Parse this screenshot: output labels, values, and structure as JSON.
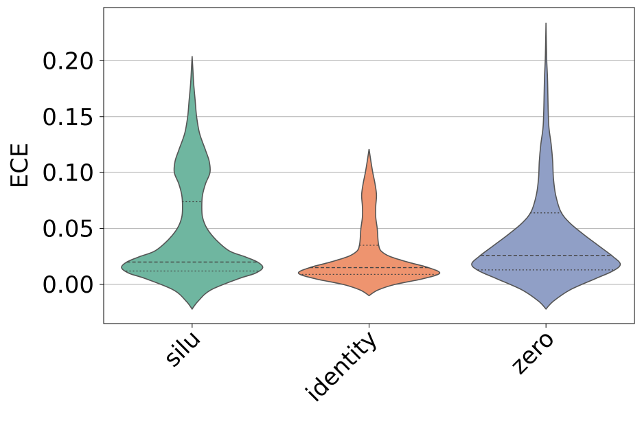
{
  "chart_data": {
    "type": "violin",
    "title": "",
    "xlabel": "",
    "ylabel": "ECE",
    "ylim": [
      -0.035,
      0.2475
    ],
    "yticks": [
      "0.00",
      "0.05",
      "0.10",
      "0.15",
      "0.20"
    ],
    "ytick_values": [
      0.0,
      0.05,
      0.1,
      0.15,
      0.2
    ],
    "grid": "horizontal",
    "categories": [
      "silu",
      "identity",
      "zero"
    ],
    "series": [
      {
        "category": "silu",
        "color": "#6fb6a0",
        "min": -0.022,
        "max": 0.204,
        "q1": 0.012,
        "median": 0.02,
        "q3": 0.074,
        "profile": [
          [
            -0.022,
            0.0
          ],
          [
            -0.015,
            0.08
          ],
          [
            -0.005,
            0.25
          ],
          [
            0.005,
            0.62
          ],
          [
            0.01,
            0.85
          ],
          [
            0.015,
            0.95
          ],
          [
            0.02,
            0.88
          ],
          [
            0.025,
            0.7
          ],
          [
            0.03,
            0.5
          ],
          [
            0.04,
            0.32
          ],
          [
            0.05,
            0.2
          ],
          [
            0.06,
            0.14
          ],
          [
            0.07,
            0.13
          ],
          [
            0.08,
            0.14
          ],
          [
            0.09,
            0.18
          ],
          [
            0.1,
            0.24
          ],
          [
            0.11,
            0.23
          ],
          [
            0.12,
            0.18
          ],
          [
            0.135,
            0.1
          ],
          [
            0.15,
            0.06
          ],
          [
            0.165,
            0.04
          ],
          [
            0.18,
            0.02
          ],
          [
            0.192,
            0.01
          ],
          [
            0.204,
            0.0
          ]
        ]
      },
      {
        "category": "identity",
        "color": "#ee946f",
        "min": -0.01,
        "max": 0.121,
        "q1": 0.009,
        "median": 0.015,
        "q3": 0.035,
        "profile": [
          [
            -0.01,
            0.0
          ],
          [
            -0.005,
            0.12
          ],
          [
            0.0,
            0.35
          ],
          [
            0.005,
            0.72
          ],
          [
            0.01,
            0.95
          ],
          [
            0.015,
            0.8
          ],
          [
            0.02,
            0.52
          ],
          [
            0.025,
            0.28
          ],
          [
            0.03,
            0.16
          ],
          [
            0.035,
            0.13
          ],
          [
            0.04,
            0.12
          ],
          [
            0.05,
            0.11
          ],
          [
            0.06,
            0.09
          ],
          [
            0.07,
            0.09
          ],
          [
            0.08,
            0.1
          ],
          [
            0.09,
            0.08
          ],
          [
            0.1,
            0.05
          ],
          [
            0.11,
            0.025
          ],
          [
            0.121,
            0.0
          ]
        ]
      },
      {
        "category": "zero",
        "color": "#909fc6",
        "min": -0.022,
        "max": 0.234,
        "q1": 0.013,
        "median": 0.026,
        "q3": 0.064,
        "profile": [
          [
            -0.022,
            0.0
          ],
          [
            -0.015,
            0.1
          ],
          [
            -0.005,
            0.32
          ],
          [
            0.005,
            0.66
          ],
          [
            0.012,
            0.9
          ],
          [
            0.018,
            1.0
          ],
          [
            0.025,
            0.9
          ],
          [
            0.035,
            0.7
          ],
          [
            0.045,
            0.5
          ],
          [
            0.055,
            0.32
          ],
          [
            0.065,
            0.2
          ],
          [
            0.08,
            0.13
          ],
          [
            0.095,
            0.1
          ],
          [
            0.11,
            0.09
          ],
          [
            0.125,
            0.07
          ],
          [
            0.14,
            0.04
          ],
          [
            0.155,
            0.03
          ],
          [
            0.17,
            0.025
          ],
          [
            0.185,
            0.02
          ],
          [
            0.2,
            0.01
          ],
          [
            0.215,
            0.005
          ],
          [
            0.234,
            0.0
          ]
        ]
      }
    ]
  }
}
